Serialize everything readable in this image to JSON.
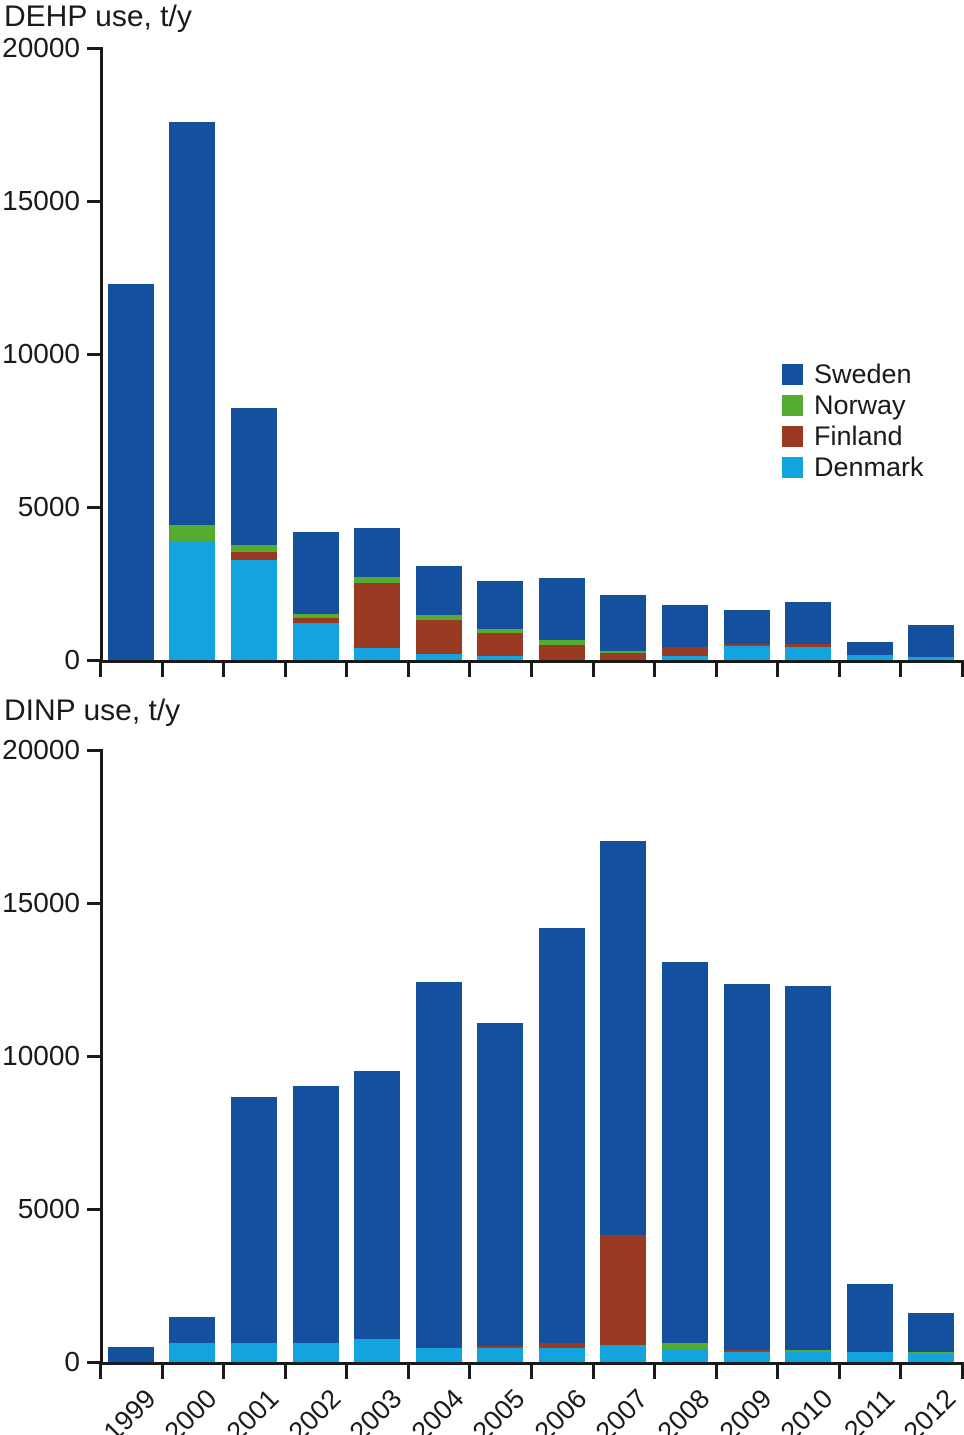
{
  "page": {
    "background": "#ffffff"
  },
  "colors": {
    "sweden": "#14509E",
    "norway": "#55AC30",
    "finland": "#9B3A22",
    "denmark": "#13A3DE",
    "axis": "#1a1a1a",
    "text": "#1a1a1a"
  },
  "legend": {
    "position": "right",
    "items": [
      {
        "label": "Sweden",
        "color_key": "sweden"
      },
      {
        "label": "Norway",
        "color_key": "norway"
      },
      {
        "label": "Finland",
        "color_key": "finland"
      },
      {
        "label": "Denmark",
        "color_key": "denmark"
      }
    ]
  },
  "chart_data": [
    {
      "type": "bar",
      "stacked": true,
      "title": "DEHP use, t/y",
      "ylabel": "t/y",
      "ylim": [
        0,
        20000
      ],
      "yticks": [
        0,
        5000,
        10000,
        15000,
        20000
      ],
      "grid": false,
      "legend_position": "right",
      "x_tick_labels_visible": false,
      "categories": [
        "1999",
        "2000",
        "2001",
        "2002",
        "2003",
        "2004",
        "2005",
        "2006",
        "2007",
        "2008",
        "2009",
        "2010",
        "2011",
        "2012"
      ],
      "stack_order_bottom_to_top": [
        "Denmark",
        "Finland",
        "Norway",
        "Sweden"
      ],
      "series": [
        {
          "name": "Denmark",
          "values": [
            0,
            3900,
            3270,
            1210,
            390,
            200,
            130,
            0,
            0,
            130,
            460,
            430,
            160,
            100
          ]
        },
        {
          "name": "Finland",
          "values": [
            0,
            0,
            260,
            160,
            2120,
            1110,
            750,
            490,
            230,
            290,
            70,
            100,
            0,
            0
          ]
        },
        {
          "name": "Norway",
          "values": [
            0,
            520,
            230,
            130,
            200,
            160,
            130,
            160,
            70,
            0,
            0,
            0,
            0,
            0
          ]
        },
        {
          "name": "Sweden",
          "values": [
            12300,
            13150,
            4480,
            2680,
            1600,
            1600,
            1570,
            2030,
            1820,
            1370,
            1110,
            1370,
            430,
            1040
          ]
        }
      ],
      "totals": [
        12300,
        17570,
        8240,
        4180,
        4310,
        3070,
        2580,
        2680,
        2120,
        1790,
        1640,
        1900,
        590,
        1140
      ]
    },
    {
      "type": "bar",
      "stacked": true,
      "title": "DINP use, t/y",
      "ylabel": "t/y",
      "ylim": [
        0,
        20000
      ],
      "yticks": [
        0,
        5000,
        10000,
        15000,
        20000
      ],
      "grid": false,
      "legend_position": "none",
      "x_tick_labels_visible": true,
      "categories": [
        "1999",
        "2000",
        "2001",
        "2002",
        "2003",
        "2004",
        "2005",
        "2006",
        "2007",
        "2008",
        "2009",
        "2010",
        "2011",
        "2012"
      ],
      "stack_order_bottom_to_top": [
        "Denmark",
        "Finland",
        "Norway",
        "Sweden"
      ],
      "series": [
        {
          "name": "Denmark",
          "values": [
            0,
            620,
            620,
            620,
            750,
            460,
            460,
            460,
            550,
            420,
            330,
            330,
            330,
            260
          ]
        },
        {
          "name": "Finland",
          "values": [
            0,
            0,
            0,
            0,
            0,
            0,
            50,
            160,
            3590,
            0,
            70,
            0,
            0,
            0
          ]
        },
        {
          "name": "Norway",
          "values": [
            0,
            0,
            0,
            0,
            0,
            0,
            0,
            0,
            0,
            200,
            0,
            70,
            0,
            70
          ]
        },
        {
          "name": "Sweden",
          "values": [
            490,
            850,
            8040,
            8400,
            8760,
            11960,
            10570,
            13560,
            12890,
            12450,
            11950,
            11890,
            2220,
            1270
          ]
        }
      ],
      "totals": [
        490,
        1470,
        8660,
        9020,
        9510,
        12420,
        11080,
        14180,
        17030,
        13070,
        12350,
        12290,
        2550,
        1600
      ]
    }
  ]
}
